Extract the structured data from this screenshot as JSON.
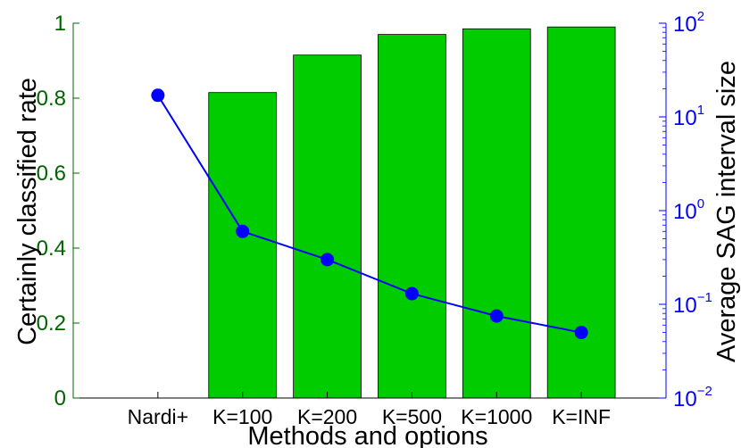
{
  "chart_data": {
    "type": "bar",
    "xlabel": "Methods and options",
    "categories": [
      "Nardi+",
      "K=100",
      "K=200",
      "K=500",
      "K=1000",
      "K=INF"
    ],
    "series": [
      {
        "axis": "left",
        "type": "bar",
        "values": [
          null,
          0.815,
          0.915,
          0.97,
          0.985,
          0.99
        ],
        "color": "#00cc00"
      },
      {
        "axis": "right",
        "type": "line",
        "values": [
          17,
          0.6,
          0.3,
          0.13,
          0.075,
          0.05
        ],
        "color": "#0000ff"
      }
    ],
    "left_axis": {
      "label": "Certainly classified rate",
      "ylim": [
        0,
        1
      ],
      "ticks": [
        "0",
        "0.2",
        "0.4",
        "0.6",
        "0.8",
        "1"
      ],
      "color": "#006400"
    },
    "right_axis": {
      "label": "Average SAG interval size",
      "scale": "log",
      "ylim": [
        0.01,
        100
      ],
      "ticks": [
        {
          "base": "10",
          "exp": "−2"
        },
        {
          "base": "10",
          "exp": "−1"
        },
        {
          "base": "10",
          "exp": "0"
        },
        {
          "base": "10",
          "exp": "1"
        },
        {
          "base": "10",
          "exp": "2"
        }
      ],
      "color": "#0000ff"
    },
    "grid": false,
    "legend": "none"
  }
}
